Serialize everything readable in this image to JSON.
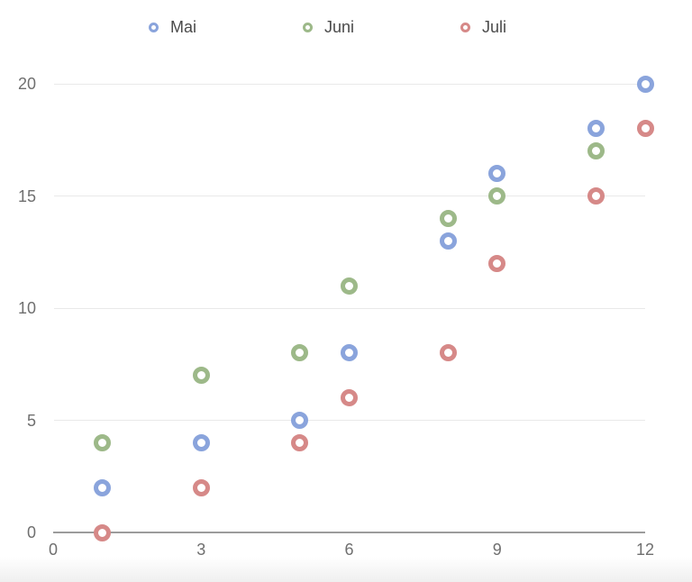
{
  "chart_data": {
    "type": "scatter",
    "title": "",
    "xlabel": "",
    "ylabel": "",
    "xlim": [
      0,
      12
    ],
    "ylim": [
      0,
      20
    ],
    "x_ticks": [
      0,
      3,
      6,
      9,
      12
    ],
    "y_ticks": [
      0,
      5,
      10,
      15,
      20
    ],
    "grid": "horizontal",
    "legend_position": "top",
    "series": [
      {
        "name": "Mai",
        "color": "#8AA4DC",
        "points": [
          [
            1,
            2
          ],
          [
            3,
            4
          ],
          [
            5,
            5
          ],
          [
            6,
            8
          ],
          [
            8,
            13
          ],
          [
            9,
            16
          ],
          [
            11,
            18
          ],
          [
            12,
            20
          ]
        ]
      },
      {
        "name": "Juni",
        "color": "#9DB989",
        "points": [
          [
            1,
            4
          ],
          [
            3,
            7
          ],
          [
            5,
            8
          ],
          [
            6,
            11
          ],
          [
            8,
            14
          ],
          [
            9,
            15
          ],
          [
            11,
            17
          ]
        ]
      },
      {
        "name": "Juli",
        "color": "#D68988",
        "points": [
          [
            1,
            0
          ],
          [
            3,
            2
          ],
          [
            5,
            4
          ],
          [
            6,
            6
          ],
          [
            8,
            8
          ],
          [
            9,
            12
          ],
          [
            11,
            15
          ],
          [
            12,
            18
          ]
        ]
      }
    ],
    "colors": {
      "gridline": "#e9e9e9",
      "axis_line": "#9c9c9c",
      "tick_label": "#6f6f6f",
      "legend_label": "#4a4a4a",
      "background": "#ffffff"
    }
  }
}
